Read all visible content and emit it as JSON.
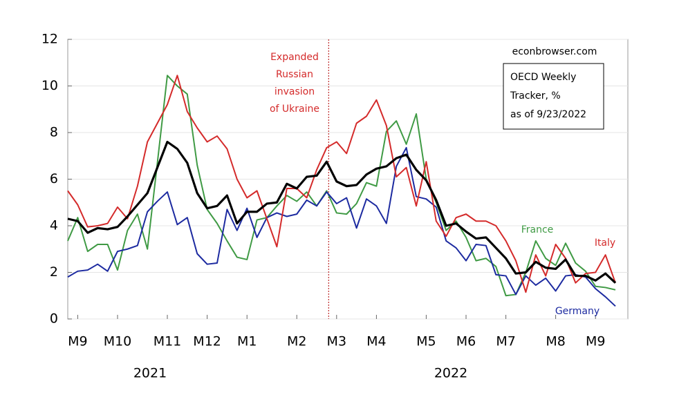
{
  "chart_data": {
    "type": "line",
    "categories": [
      null,
      "M9",
      null,
      null,
      null,
      "M10",
      null,
      null,
      null,
      null,
      "M11",
      null,
      null,
      null,
      "M12",
      null,
      null,
      null,
      "M1",
      null,
      null,
      null,
      null,
      "M2",
      null,
      null,
      null,
      "M3",
      null,
      null,
      null,
      "M4",
      null,
      null,
      null,
      null,
      "M5",
      null,
      null,
      null,
      "M6",
      null,
      null,
      null,
      "M7",
      null,
      null,
      null,
      null,
      "M8",
      null,
      null,
      null,
      "M9",
      null,
      null
    ],
    "year_labels": [
      "2021",
      "2022"
    ],
    "series": [
      {
        "color": "#000000",
        "values": [
          4.3,
          4.2,
          3.7,
          3.9,
          3.85,
          3.95,
          4.4,
          4.9,
          5.4,
          6.5,
          7.6,
          7.3,
          6.7,
          5.4,
          4.75,
          4.85,
          5.3,
          4.1,
          4.6,
          4.6,
          4.95,
          5.0,
          5.8,
          5.6,
          6.1,
          6.15,
          6.75,
          5.9,
          5.7,
          5.75,
          6.2,
          6.45,
          6.55,
          6.9,
          7.05,
          6.4,
          5.95,
          5.1,
          4.0,
          4.1,
          3.75,
          3.45,
          3.5,
          3.05,
          2.6,
          1.95,
          2.0,
          2.45,
          2.2,
          2.15,
          2.55,
          1.85,
          1.85,
          1.65,
          1.95,
          1.55
        ]
      },
      {
        "name": "Italy",
        "color": "#d42a2a",
        "values": [
          5.5,
          4.9,
          3.95,
          4.0,
          4.1,
          4.8,
          4.3,
          5.7,
          7.6,
          8.4,
          9.2,
          10.45,
          8.9,
          8.2,
          7.6,
          7.85,
          7.3,
          6.0,
          5.2,
          5.5,
          4.3,
          3.1,
          5.6,
          5.6,
          5.2,
          6.4,
          7.35,
          7.6,
          7.1,
          8.4,
          8.7,
          9.4,
          8.3,
          6.1,
          6.5,
          4.85,
          6.75,
          4.2,
          3.55,
          4.35,
          4.5,
          4.2,
          4.2,
          4.0,
          3.35,
          2.5,
          1.15,
          2.75,
          1.85,
          3.2,
          2.6,
          1.55,
          1.95,
          2.0,
          2.75,
          1.55
        ]
      },
      {
        "name": "France",
        "color": "#3f9a44",
        "values": [
          3.35,
          4.35,
          2.9,
          3.2,
          3.2,
          2.1,
          3.8,
          4.5,
          3.0,
          6.7,
          10.45,
          10.0,
          9.65,
          6.6,
          4.7,
          4.1,
          3.35,
          2.65,
          2.55,
          4.25,
          4.35,
          4.85,
          5.3,
          5.05,
          5.45,
          4.85,
          5.5,
          4.55,
          4.5,
          4.95,
          5.85,
          5.7,
          8.05,
          8.5,
          7.5,
          8.8,
          6.0,
          5.0,
          3.8,
          4.2,
          3.5,
          2.5,
          2.6,
          2.25,
          1.0,
          1.05,
          2.0,
          3.35,
          2.6,
          2.3,
          3.25,
          2.4,
          2.05,
          1.4,
          1.35,
          1.25
        ]
      },
      {
        "name": "Germany",
        "color": "#1c2aa0",
        "values": [
          1.8,
          2.05,
          2.1,
          2.35,
          2.05,
          2.9,
          3.0,
          3.15,
          4.6,
          5.05,
          5.45,
          4.05,
          4.35,
          2.8,
          2.35,
          2.4,
          4.7,
          3.8,
          4.75,
          3.5,
          4.35,
          4.55,
          4.4,
          4.5,
          5.1,
          4.85,
          5.45,
          4.95,
          5.2,
          3.9,
          5.15,
          4.85,
          4.1,
          6.55,
          7.35,
          5.25,
          5.15,
          4.8,
          3.35,
          3.05,
          2.5,
          3.2,
          3.15,
          1.9,
          1.85,
          1.05,
          1.85,
          1.45,
          1.75,
          1.2,
          1.85,
          1.9,
          1.8,
          1.3,
          0.95,
          0.55
        ]
      }
    ],
    "ylim": [
      0,
      12
    ],
    "yticks": [
      0,
      2,
      4,
      6,
      8,
      10,
      12
    ],
    "grid": true,
    "event_line_at": 26.2,
    "event_annotation": [
      "Expanded",
      "Russian",
      "invasion",
      "of Ukraine"
    ],
    "source": "econbrowser.com",
    "box_annotation": [
      "OECD Weekly",
      "Tracker, %",
      "as of 9/23/2022"
    ]
  }
}
